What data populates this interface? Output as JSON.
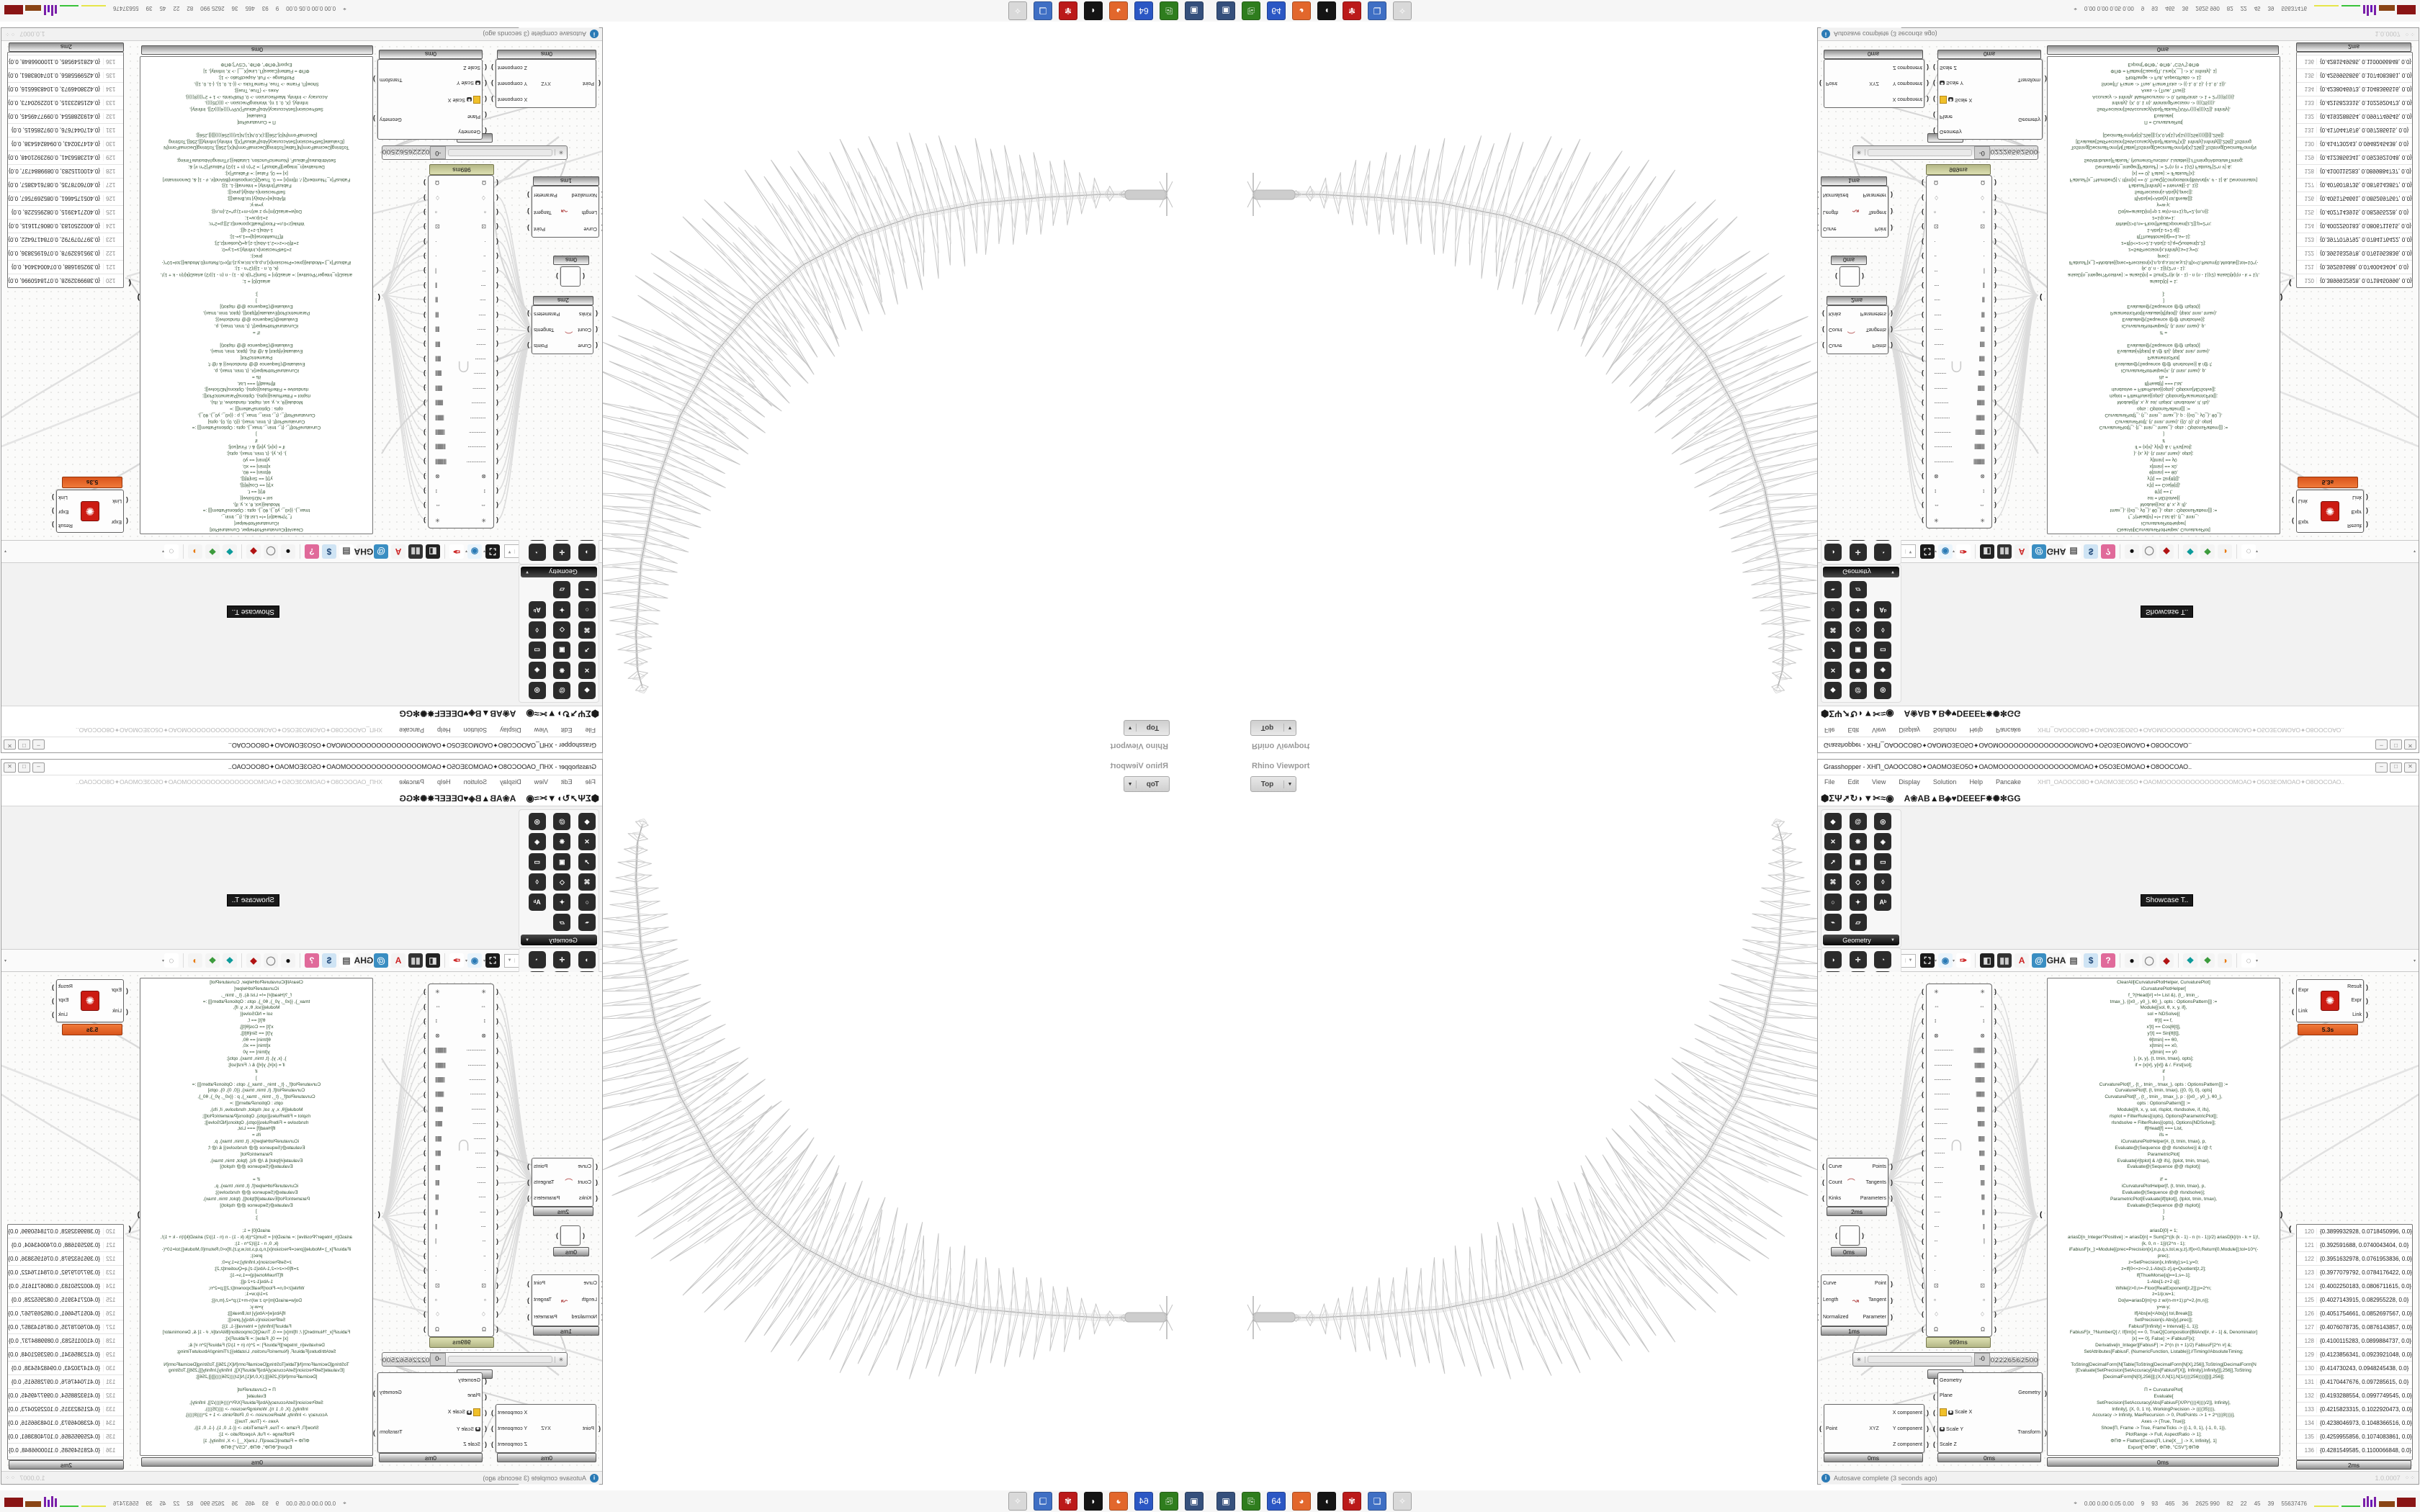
{
  "window": {
    "title": "Grasshopper - XHΠ_ΟΑΟΟCΟ8Ο✦ΟΑΟΜΟ3ΕΟ5Ο✦ΟΑΟΜΟΟΟΟΟΟΟΟΟΟΟΟΟΟΟΜΟΑΟ✦Ο5Ο3ΕΟΜΟΑΟ✦Ο8ΟΟCΟΑΟ..",
    "doc_name": "XHΠ_ΟΑΟΟCΟ8Ο✦ΟΑΟΜΟ3ΕΟ5Ο✦ΟΑΟΜΟΟΟΟΟΟΟΟΟΟΟΟΟΟΟΜΟΑΟ✦Ο5Ο3ΕΟΜΟΑΟ✦Ο8ΟΟCΟΑΟ..",
    "buttons": [
      "–",
      "□",
      "✕"
    ],
    "menus": [
      "File",
      "Edit",
      "View",
      "Display",
      "Solution",
      "Help",
      "Pancake"
    ],
    "autosave": "Autosave complete (3 seconds ago)",
    "version": "1.0.0007",
    "grip": "⁘⁘"
  },
  "tabs": {
    "left": [
      {
        "g": "⬢",
        "name": "params-tab"
      },
      {
        "g": "Σ",
        "name": "maths-tab"
      },
      {
        "g": "Ψ",
        "name": "sets-tab"
      },
      {
        "g": "➚",
        "name": "vector-tab"
      },
      {
        "g": "↻",
        "name": "curve-tab"
      },
      {
        "g": "◗",
        "name": "surface-tab"
      },
      {
        "g": "▼",
        "name": "mesh-tab"
      },
      {
        "g": "✂",
        "name": "intersect-tab"
      },
      {
        "g": "≈",
        "name": "transform-tab"
      },
      {
        "g": "◉",
        "name": "display-tab"
      }
    ],
    "right": [
      {
        "g": "A"
      },
      {
        "g": "❀"
      },
      {
        "g": "A"
      },
      {
        "g": "B"
      },
      {
        "g": "▲"
      },
      {
        "g": "B"
      },
      {
        "g": "◈"
      },
      {
        "g": "♥"
      },
      {
        "g": "D"
      },
      {
        "g": "E"
      },
      {
        "g": "E"
      },
      {
        "g": "E"
      },
      {
        "g": "F"
      },
      {
        "g": "✸"
      },
      {
        "g": "✺"
      },
      {
        "g": "✻"
      },
      {
        "g": "G"
      },
      {
        "g": "G"
      }
    ]
  },
  "ribbon": {
    "showcase_tooltip": "Showcase T..",
    "groups": [
      {
        "label": "Geometry",
        "tiles": [
          {
            "g": "◆",
            "c": "#2b2b2b"
          },
          {
            "g": "✕",
            "c": "#2b2b2b"
          },
          {
            "g": "➚",
            "c": "#2b2b2b"
          },
          {
            "g": "⌘",
            "c": "#2b2b2b"
          },
          {
            "g": "○",
            "c": "#2b2b2b"
          },
          {
            "g": "⌁",
            "c": "#2b2b2b"
          },
          {
            "g": "@",
            "c": "#2b2b2b"
          },
          {
            "g": "❋",
            "c": "#2b2b2b"
          },
          {
            "g": "▣",
            "c": "#2b2b2b"
          },
          {
            "g": "◇",
            "c": "#2b2b2b"
          },
          {
            "g": "✦",
            "c": "#2b2b2b"
          },
          {
            "g": "▱",
            "c": "#2b2b2b"
          },
          {
            "g": "◎",
            "c": "#2b2b2b"
          },
          {
            "g": "◈",
            "c": "#2b2b2b"
          },
          {
            "g": "▭",
            "c": "#2b2b2b"
          },
          {
            "g": "◊",
            "c": "#2b2b2b"
          },
          {
            "g": "Aᵇ",
            "c": "#2b2b2b"
          }
        ]
      },
      {
        "label": "Primitive",
        "tiles": [
          {
            "g": "◑",
            "c": "#2b2b2b"
          },
          {
            "g": "7",
            "c": "#2b2b2b"
          },
          {
            "g": "0.1",
            "c": "#2b2b2b"
          },
          {
            "g": "A",
            "c": "#2b2b2b"
          },
          {
            "g": "✶",
            "c": "#2b2b2b"
          },
          {
            "g": "ÜÇ",
            "c": "#2b2b2b"
          },
          {
            "g": "✛",
            "c": "#2b2b2b"
          },
          {
            "g": "▦",
            "c": "#2b2b2b"
          },
          {
            "g": "#",
            "c": "#2b2b2b"
          },
          {
            "g": "ID",
            "c": "#2b2b2b"
          },
          {
            "g": "▩",
            "c": "#2b2b2b"
          },
          {
            "g": "C/",
            "c": "#2b2b2b"
          },
          {
            "g": "◔",
            "c": "#2b2b2b"
          },
          {
            "g": "⬢",
            "c": "#2b2b2b"
          }
        ]
      },
      {
        "label": "Input",
        "tiles": [
          {
            "g": "⬇",
            "c": "#2b2b2b"
          },
          {
            "g": "∿",
            "c": "#e8c51a",
            "f": "#6b4a00"
          },
          {
            "g": "⁴⁵",
            "c": "#2b2b2b"
          },
          {
            "g": "▤",
            "c": "#2b2b2b"
          },
          {
            "g": "▣",
            "c": "#2b2b2b"
          },
          {
            "g": "✥",
            "c": "#2b2b2b"
          },
          {
            "g": "◼",
            "c": "#2b2b2b"
          },
          {
            "g": "●",
            "c": "#3a3a3a"
          },
          {
            "g": "20",
            "c": "#2b2b2b"
          },
          {
            "g": "◷",
            "c": "#1a1a1a"
          },
          {
            "g": "❖",
            "c": "#2a7d2a"
          },
          {
            "g": "🜊",
            "c": "#e07820"
          },
          {
            "g": "▤",
            "c": "#d63384"
          },
          {
            "g": "▨",
            "c": "#49a94d"
          },
          {
            "g": "◪",
            "c": "#2b2b2b"
          },
          {
            "g": "◯",
            "c": "#e8e8e8",
            "f": "#888"
          },
          {
            "g": "║",
            "c": "#2aa1c2"
          },
          {
            "g": "3DM",
            "c": "#f2f2f2",
            "f": "#333"
          },
          {
            "g": "XYZ",
            "c": "#f2f2f2",
            "f": "#333"
          },
          {
            "g": "IMG",
            "c": "#f2f2f2",
            "f": "#333"
          },
          {
            "g": "PDB",
            "c": "#f2f2f2",
            "f": "#333"
          },
          {
            "g": "◎",
            "c": "#2b2b2b"
          }
        ]
      },
      {
        "label": "Util",
        "tiles": [
          {
            "g": "❦",
            "c": "#b01818"
          },
          {
            "g": "⚘",
            "c": "#3c6e3c"
          },
          {
            "g": "✺",
            "c": "#3a3a3a"
          },
          {
            "g": "ABC",
            "c": "#111",
            "f": "#fff"
          },
          {
            "g": "∪",
            "c": "#222"
          },
          {
            "g": "REC",
            "c": "#e05a00"
          },
          {
            "g": "✎",
            "c": "#8a5a2d"
          },
          {
            "g": "[Y]",
            "c": "#3a6ec2"
          },
          {
            "g": "➜",
            "c": "#9a9a9a"
          },
          {
            "g": "➩",
            "c": "#c2c2c2",
            "f": "#555"
          },
          {
            "g": "◷",
            "c": "#2b2b2b"
          },
          {
            "g": "◉",
            "c": "#222"
          },
          {
            "g": "▣",
            "c": "#7b2d8b"
          },
          {
            "g": "Pr",
            "c": "#5a2d82"
          },
          {
            "g": "▣",
            "c": "#7b2d8b"
          },
          {
            "g": "▣",
            "c": "#7b2d8b"
          },
          {
            "g": "◕",
            "c": "#c23a7a"
          },
          {
            "g": "⚗",
            "c": "#c23a7a"
          },
          {
            "g": "f(x)",
            "c": "#e88ab8",
            "f": "#5a1a3a"
          },
          {
            "g": "✦",
            "c": "#2b2b2b"
          },
          {
            "g": "7",
            "c": "#7b2d8b"
          },
          {
            "g": "✹",
            "c": "#333"
          }
        ]
      },
      {
        "label": "",
        "tiles": [
          {
            "g": "ᴖᴖ",
            "c": "#2b2b2b",
            "f": "#9ad"
          },
          {
            "g": "ᴖᴖ",
            "c": "#2b2b2b",
            "f": "#9ad"
          },
          {
            "g": "⛶",
            "c": "#2b2b2b"
          }
        ]
      }
    ]
  },
  "toolbar": {
    "zoom": "100%",
    "icons": [
      {
        "g": "▨",
        "c": "#57a33b",
        "f": "#fff",
        "name": "open-file-icon"
      },
      {
        "g": "▼",
        "c": "#3a62c2",
        "f": "#fff",
        "name": "save-file-icon"
      },
      {
        "g": "⛶",
        "c": "#1a1a1a",
        "f": "#fff",
        "name": "zoom-extents-icon"
      },
      {
        "g": "◉",
        "c": "#eaf4fb",
        "f": "#2a7ab5",
        "name": "preview-eye-icon"
      },
      {
        "g": "✑",
        "c": "#fff",
        "f": "#c22",
        "name": "sketch-icon"
      },
      {
        "g": "◧",
        "c": "#222",
        "f": "#ddd",
        "name": "exposure-icon"
      },
      {
        "g": "▮▮",
        "c": "#333",
        "f": "#ccc",
        "name": "speaker-icon"
      },
      {
        "g": "A",
        "c": "#f4f4f4",
        "f": "#c22",
        "name": "axes-icon"
      },
      {
        "g": "@",
        "c": "#3a8ec2",
        "f": "#fff",
        "name": "mention-icon"
      },
      {
        "g": "GHA",
        "c": "#f4f4f4",
        "f": "#222",
        "name": "gha-icon"
      },
      {
        "g": "▤",
        "c": "#fff",
        "f": "#555",
        "name": "notes-icon"
      },
      {
        "g": "$",
        "c": "#cfe4f4",
        "f": "#224a7a",
        "name": "finance-magnifier-icon"
      },
      {
        "g": "?",
        "c": "#e06a9a",
        "f": "#fff",
        "name": "package-help-icon"
      },
      {
        "g": "●",
        "c": "#f4f4f4",
        "f": "#111",
        "name": "shaded-sphere-icon"
      },
      {
        "g": "◯",
        "c": "#f4f4f4",
        "f": "#888",
        "name": "wire-sphere-icon"
      },
      {
        "g": "◆",
        "c": "#f4f4f4",
        "f": "#b01212",
        "name": "gem-icon"
      },
      {
        "g": "❖",
        "c": "#f4f4f4",
        "f": "#0a9a9a",
        "name": "teal-blob-icon"
      },
      {
        "g": "❖",
        "c": "#f4f4f4",
        "f": "#3a9a3a",
        "name": "green-blob-icon"
      },
      {
        "g": "◑",
        "c": "#f4f4f4",
        "f": "#e87a10",
        "name": "half-sphere-icon"
      },
      {
        "g": "◌",
        "c": "#fff",
        "f": "#666",
        "name": "selection-region-icon"
      }
    ]
  },
  "viewport": {
    "label": "Rhino Viewport",
    "view_tab": "Top",
    "dropdown": "▼"
  },
  "canvas": {
    "divide": {
      "time": "2ms",
      "inputs": [
        "Curve",
        "Count",
        "Kinks"
      ],
      "outputs": [
        "Points",
        "Tangents",
        "Parameters"
      ]
    },
    "evaluate_length": {
      "time": "1ms",
      "inputs": [
        "Curve",
        "Length",
        "Normalized"
      ],
      "outputs": [
        "Point",
        "Tangent",
        "Parameter"
      ]
    },
    "small": {
      "time": "0ms"
    },
    "deconstruct": {
      "time": "0ms",
      "icon": "XYZ",
      "inputs": [
        "Point"
      ],
      "outputs": [
        "X component",
        "Y component",
        "Z component"
      ]
    },
    "scale_nu": {
      "time": "0ms",
      "inputs": [
        {
          "t": "Geometry"
        },
        {
          "t": "Plane"
        },
        {
          "t": "Scale X",
          "b": "✱",
          "note": true
        },
        {
          "t": "Scale Y",
          "b": "✱"
        },
        {
          "t": "Scale Z"
        }
      ],
      "outputs": [
        "Geometry",
        "Transform"
      ]
    }
  },
  "mathematica": {
    "time": "5.3s",
    "logo": "✺",
    "inputs": [
      "Expr",
      "Link"
    ],
    "outputs": [
      "Result",
      "Expr",
      "Link"
    ]
  },
  "slider": {
    "time": "0ms",
    "grip": "✳",
    "knob": "-0",
    "digits": [
      "0",
      "2",
      "2",
      "2",
      "6",
      "5",
      "6",
      "2",
      "5",
      "0",
      "0"
    ]
  },
  "genepool": {
    "time": "989ms",
    "rows": [
      {
        "l": "✳",
        "r": "✳"
      },
      {
        "l": "⇔",
        "r": "⇔"
      },
      {
        "l": "↕",
        "r": "↕"
      },
      {
        "l": "⊗",
        "r": "⊗"
      },
      {
        "l": "················",
        "r": "||||||||||||||"
      },
      {
        "l": "···············",
        "r": "|||||||||||||"
      },
      {
        "l": "··············",
        "r": "||||||||||||"
      },
      {
        "l": "·············",
        "r": "|||||||||||"
      },
      {
        "l": "············",
        "r": "||||||||||"
      },
      {
        "l": "···········",
        "r": "|||||||||"
      },
      {
        "l": "··········",
        "r": "||||||||"
      },
      {
        "l": "·········",
        "r": "|||||||"
      },
      {
        "l": "········",
        "r": "||||||"
      },
      {
        "l": "·······",
        "r": "|||||"
      },
      {
        "l": "······",
        "r": "||||"
      },
      {
        "l": "·····",
        "r": "|||"
      },
      {
        "l": "····",
        "r": "||"
      },
      {
        "l": "···",
        "r": "|"
      },
      {
        "l": "··",
        "r": "·"
      },
      {
        "l": "·",
        "r": "·"
      },
      {
        "l": "⊡",
        "r": "⊡"
      },
      {
        "l": "▫",
        "r": "▫"
      },
      {
        "l": "♢",
        "r": "♢"
      },
      {
        "l": "Ω",
        "r": "Ω"
      }
    ]
  },
  "code_panel": {
    "time": "0ms",
    "text": "ClearAll[iCurvaturePlotHelper, CurvaturePlot]\niCurvaturePlotHelper[\nf_?(Head[#] =!= List &), {t_, tmin_,\ntmax_}, {{x0_, y0_}, θ0_}, opts : OptionsPattern[]] :=\nModule[{sol, θ, x, y, if},\nsol = NDSolve[{\nθ'[t] == f,\nx'[t] == Cos[θ[t]],\ny'[t] == Sin[θ[t]],\nθ[tmin] == θ0,\nx[tmin] == x0,\ny[tmin] == y0\n}, {x, y}, {t, tmin, tmax}, opts];\nif = {x[#], y[#]} & /. First[sol];\nif\n]\nCurvaturePlot[f_, {t_, tmin_, tmax_}, opts : OptionsPattern[]] :=\nCurvaturePlot[f, {t, tmin, tmax}, {{0, 0}, 0}, opts]\nCurvaturePlot[f_, {t_, tmin_, tmax_}, p : {{x0_, y0_}, θ0_},\nopts : OptionsPattern[]] :=\nModule[{θ, x, y, sol, rlsplot, rlsndsolve, if, ifs},\nrlsplot = FilterRules[{opts}, Options[ParametricPlot]];\nrlsndsolve = FilterRules[{opts}, Options[NDSolve]];\nIf[Head[f] === List,\nifs =\niCurvaturePlotHelper[#, {t, tmin, tmax}, p,\nEvaluate@(Sequence @@ rlsndsolve)] & /@ f;\nParametricPlot[\nEvaluate[#[tplot] & /@ ifs], {tplot, tmin, tmax},\nEvaluate@(Sequence @@ rlsplot)]\n\nif' =\niCurvaturePlotHelper[f, {t, tmin, tmax}, p,\nEvaluate@(Sequence @@ rlsndsolve)];\nParametricPlot[Evaluate[if[tplot]], {tplot, tmin, tmax},\nEvaluate@(Sequence @@ rlsplot)]\n]\n];\n\nariasD[0] = 1;\nariasD[n_Integer?Positive] := ariasD[n] = Sum[2^((k (k - 1) - n (n - 1))/2) ariasD[k]/(n - k + 1)!,\n{k, 0, n - 1}]/(2^n - 1);\niFabiusF[x_]:=Module[{prec=Precision[x],n,p,q,s,tol,w,y,z},If[x<0,Return[0,Module]];tol=10^(-\nprec);\nz=SetPrecision[x,Infinity];s=1;y=0;\nz=If[0<=z<=2,1-Abs[1-z],q=Quotient[z,2];\nIf[ThueMorse[q]==1,s=-1];\n1-Abs[1-z+2 q]];\nWhile[z>0,n=-Floor[RealExponent[z,2]];p=2^n;\nz=1/p;w=1;\nDo[w=ariasD[m]+p z w/(n-m+1);p*=2,{m,n}];\ny=w-y;\nIf[Abs[w]<Abs[y] tol,Break[]];\nSetPrecision[s Abs[y],prec]];\nFabiusF[Infinity] = Interval[{-1, 1}];\nFabiusF[x_?NumberQ] /; If[Im[x] == 0, TrueQ[Composition[BitAnd[#, # - 1] &, Denominator]\n[x] == 0], False] := iFabiusF[x];\nDerivative[n_Integer][FabiusF] := 2^(n (n + 1)/2) FabiusF[2^n #] &;\nSetAttributes[FabiusF, {NumericFunction, Listable}];//Timing//AbsoluteTiming;\n\nToString[DecimalForm[N[Table[ToString[DecimalForm[N[X],256]],ToString[DecimalForm[N\n[Evaluate[SetPrecision[SetAccuracy[Abs[FabiusF[X]], Infinity],Infinity]]],256]],ToString\n[DecimalForm[N[0],256]]];{X,0,N[1],N[1/((((256))))]]}]],256]];\n\nΠ = CurvaturePlot[\nEvaluate[\nSetPrecision[SetAccuracy[Abs[FabiusF[X/Pi^((((4))))/2]], Infinity],\nInfinity], {X, 0, 1 π}, WorkingPrecision -> ((((35)))),\nAccuracy -> Infinity, MaxRecursion -> 0, PlotPoints -> 1 + 2^((((8))))],\nAxes -> {True, True}];\nShow[Π, Frame -> True, FrameTicks -> {{-1, 0, 1}, {-1, 0, 1}},\nPlotRange -> Full, AspectRatio -> 1];\nΦΠΦ = Flatten[Cases[Π, Line[X__] -> X, Infinity], 1]\nExport[\"ΦΠΦ\", ΦΠΦ, \"CSV\"];ΦΠΦ"
  },
  "points_panel": {
    "time": "2ms",
    "rows": [
      {
        "n": "120",
        "v": "{0.3899932928, 0.0718450996, 0.0}"
      },
      {
        "n": "121",
        "v": "{0.392591688, 0.0740043404, 0.0}"
      },
      {
        "n": "122",
        "v": "{0.3951632978, 0.0761953836, 0.0}"
      },
      {
        "n": "123",
        "v": "{0.3977079792, 0.0784176422, 0.0}"
      },
      {
        "n": "124",
        "v": "{0.4002250183, 0.0806711615, 0.0}"
      },
      {
        "n": "125",
        "v": "{0.4027143915, 0.082955228, 0.0}"
      },
      {
        "n": "126",
        "v": "{0.4051754661, 0.0852697567, 0.0}"
      },
      {
        "n": "127",
        "v": "{0.4076078735, 0.0876143857, 0.0}"
      },
      {
        "n": "128",
        "v": "{0.4100115283, 0.0899884737, 0.0}"
      },
      {
        "n": "129",
        "v": "{0.4123856341, 0.0923921048, 0.0}"
      },
      {
        "n": "130",
        "v": "{0.414730243, 0.0948245438, 0.0}"
      },
      {
        "n": "131",
        "v": "{0.4170447676, 0.097285615, 0.0}"
      },
      {
        "n": "132",
        "v": "{0.4193288554, 0.0997749545, 0.0}"
      },
      {
        "n": "133",
        "v": "{0.4215823315, 0.1022920473, 0.0}"
      },
      {
        "n": "134",
        "v": "{0.4238046973, 0.1048366516, 0.0}"
      },
      {
        "n": "135",
        "v": "{0.4259955856, 0.1074083861, 0.0}"
      },
      {
        "n": "136",
        "v": "{0.4281549585, 0.1100066848, 0.0}"
      },
      {
        "n": "137",
        "v": "{0.4302820424, 0.112631419, 0.0}"
      }
    ]
  },
  "taskbar": {
    "icons": [
      {
        "g": "▣",
        "c": "#35507c",
        "name": "screenshot-tool-icon"
      },
      {
        "g": "⎘",
        "c": "#2f7d1e",
        "name": "green-link-icon"
      },
      {
        "g": "64",
        "c": "#2b57c4",
        "name": "floppy-64-icon"
      },
      {
        "g": "◕",
        "c": "#e2672c",
        "name": "firefox-icon"
      },
      {
        "g": "◖",
        "c": "#141414",
        "name": "fox-bw-icon"
      },
      {
        "g": "✾",
        "c": "#bb1a1a",
        "name": "red-gear-icon"
      },
      {
        "g": "❏",
        "c": "#3f6fc4",
        "name": "blue-window-icon"
      },
      {
        "g": "✧",
        "c": "#d9d9d9",
        "name": "disabled-app-icon"
      }
    ],
    "stats": {
      "marker": "⌖",
      "values": [
        "0.00 0.00 0.05 0.00",
        "9",
        "93",
        "465",
        "36",
        "2625 990",
        "82",
        "22",
        "45",
        "39",
        "55637476"
      ]
    }
  }
}
